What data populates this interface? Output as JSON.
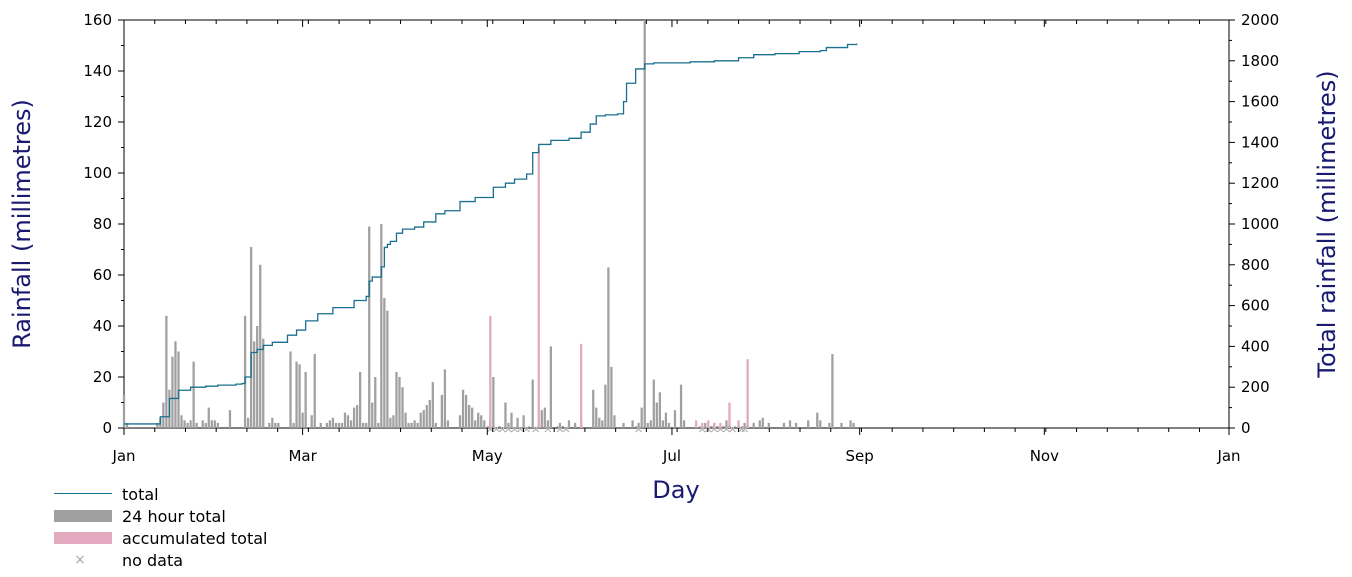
{
  "chart_data": {
    "type": "bar",
    "xlabel": "Day",
    "ylabel_left": "Rainfall (millimetres)",
    "ylabel_right": "Total rainfall (millimetres)",
    "ylim_left": [
      0,
      160
    ],
    "ylim_right": [
      0,
      2000
    ],
    "yticks_left": [
      0,
      20,
      40,
      60,
      80,
      100,
      120,
      140,
      160
    ],
    "yticks_right": [
      0,
      200,
      400,
      600,
      800,
      1000,
      1200,
      1400,
      1600,
      1800,
      2000
    ],
    "xticks": [
      {
        "label": "Jan",
        "day": 1
      },
      {
        "label": "Mar",
        "day": 60
      },
      {
        "label": "May",
        "day": 121
      },
      {
        "label": "Jul",
        "day": 182
      },
      {
        "label": "Sep",
        "day": 244
      },
      {
        "label": "Nov",
        "day": 305
      },
      {
        "label": "Jan",
        "day": 366
      }
    ],
    "xlim_days": [
      1,
      366
    ],
    "legend": [
      {
        "label": "total",
        "kind": "line",
        "color": "#1a7090"
      },
      {
        "label": "24 hour total",
        "kind": "bar",
        "color": "#a0a0a0"
      },
      {
        "label": "accumulated total",
        "kind": "bar",
        "color": "#e3a9be"
      },
      {
        "label": "no data",
        "kind": "marker",
        "color": "#aaaaaa"
      }
    ],
    "series": [
      {
        "name": "24 hour total",
        "color": "#a0a0a0",
        "points": [
          [
            1,
            13
          ],
          [
            2,
            2
          ],
          [
            12,
            2
          ],
          [
            13,
            4
          ],
          [
            14,
            10
          ],
          [
            15,
            44
          ],
          [
            16,
            15
          ],
          [
            17,
            28
          ],
          [
            18,
            34
          ],
          [
            19,
            30
          ],
          [
            20,
            5
          ],
          [
            21,
            3
          ],
          [
            22,
            2
          ],
          [
            23,
            3
          ],
          [
            24,
            26
          ],
          [
            25,
            2
          ],
          [
            27,
            3
          ],
          [
            28,
            2
          ],
          [
            29,
            8
          ],
          [
            30,
            3
          ],
          [
            31,
            3
          ],
          [
            32,
            2
          ],
          [
            36,
            7
          ],
          [
            41,
            44
          ],
          [
            42,
            4
          ],
          [
            43,
            71
          ],
          [
            44,
            34
          ],
          [
            45,
            40
          ],
          [
            46,
            64
          ],
          [
            47,
            35
          ],
          [
            49,
            2
          ],
          [
            50,
            4
          ],
          [
            51,
            2
          ],
          [
            52,
            2
          ],
          [
            56,
            30
          ],
          [
            57,
            2
          ],
          [
            58,
            26
          ],
          [
            59,
            25
          ],
          [
            60,
            6
          ],
          [
            61,
            22
          ],
          [
            63,
            5
          ],
          [
            64,
            29
          ],
          [
            66,
            2
          ],
          [
            68,
            2
          ],
          [
            69,
            3
          ],
          [
            70,
            4
          ],
          [
            71,
            2
          ],
          [
            72,
            2
          ],
          [
            73,
            2
          ],
          [
            74,
            6
          ],
          [
            75,
            5
          ],
          [
            76,
            3
          ],
          [
            77,
            8
          ],
          [
            78,
            9
          ],
          [
            79,
            22
          ],
          [
            80,
            2
          ],
          [
            81,
            2
          ],
          [
            82,
            79
          ],
          [
            83,
            10
          ],
          [
            84,
            20
          ],
          [
            85,
            2
          ],
          [
            86,
            80
          ],
          [
            87,
            51
          ],
          [
            88,
            46
          ],
          [
            89,
            4
          ],
          [
            90,
            5
          ],
          [
            91,
            22
          ],
          [
            92,
            20
          ],
          [
            93,
            16
          ],
          [
            94,
            6
          ],
          [
            95,
            2
          ],
          [
            96,
            2
          ],
          [
            97,
            3
          ],
          [
            98,
            2
          ],
          [
            99,
            6
          ],
          [
            100,
            7
          ],
          [
            101,
            9
          ],
          [
            102,
            11
          ],
          [
            103,
            18
          ],
          [
            104,
            2
          ],
          [
            106,
            13
          ],
          [
            107,
            23
          ],
          [
            108,
            3
          ],
          [
            112,
            5
          ],
          [
            113,
            15
          ],
          [
            114,
            13
          ],
          [
            115,
            9
          ],
          [
            116,
            8
          ],
          [
            117,
            3
          ],
          [
            118,
            6
          ],
          [
            119,
            5
          ],
          [
            120,
            3
          ],
          [
            122,
            3
          ],
          [
            123,
            20
          ],
          [
            127,
            10
          ],
          [
            128,
            2
          ],
          [
            129,
            6
          ],
          [
            131,
            4
          ],
          [
            133,
            5
          ],
          [
            136,
            19
          ],
          [
            139,
            7
          ],
          [
            140,
            8
          ],
          [
            141,
            3
          ],
          [
            142,
            32
          ],
          [
            145,
            2
          ],
          [
            148,
            3
          ],
          [
            150,
            2
          ],
          [
            152,
            3
          ],
          [
            156,
            15
          ],
          [
            157,
            8
          ],
          [
            158,
            4
          ],
          [
            159,
            3
          ],
          [
            160,
            17
          ],
          [
            161,
            63
          ],
          [
            162,
            24
          ],
          [
            163,
            5
          ],
          [
            166,
            2
          ],
          [
            169,
            3
          ],
          [
            171,
            2
          ],
          [
            172,
            8
          ],
          [
            173,
            160
          ],
          [
            174,
            2
          ],
          [
            175,
            3
          ],
          [
            176,
            19
          ],
          [
            177,
            10
          ],
          [
            178,
            14
          ],
          [
            179,
            3
          ],
          [
            180,
            6
          ],
          [
            181,
            2
          ],
          [
            183,
            7
          ],
          [
            185,
            17
          ],
          [
            186,
            3
          ],
          [
            193,
            2
          ],
          [
            196,
            2
          ],
          [
            200,
            3
          ],
          [
            201,
            2
          ],
          [
            206,
            2
          ],
          [
            209,
            2
          ],
          [
            211,
            3
          ],
          [
            212,
            4
          ],
          [
            214,
            2
          ],
          [
            219,
            2
          ],
          [
            221,
            3
          ],
          [
            223,
            2
          ],
          [
            227,
            3
          ],
          [
            230,
            6
          ],
          [
            231,
            3
          ],
          [
            234,
            2
          ],
          [
            235,
            29
          ],
          [
            238,
            2
          ],
          [
            241,
            3
          ],
          [
            242,
            2
          ]
        ]
      },
      {
        "name": "accumulated total",
        "color": "#e3a9be",
        "points": [
          [
            122,
            44
          ],
          [
            138,
            110
          ],
          [
            152,
            33
          ],
          [
            201,
            10
          ],
          [
            207,
            27
          ],
          [
            190,
            3
          ],
          [
            192,
            2
          ],
          [
            194,
            3
          ],
          [
            196,
            2
          ],
          [
            198,
            2
          ],
          [
            204,
            3
          ]
        ]
      },
      {
        "name": "total",
        "color": "#1a7090",
        "points": [
          [
            1,
            20
          ],
          [
            9,
            20
          ],
          [
            13,
            55
          ],
          [
            16,
            145
          ],
          [
            19,
            185
          ],
          [
            23,
            200
          ],
          [
            28,
            205
          ],
          [
            32,
            210
          ],
          [
            38,
            215
          ],
          [
            40,
            218
          ],
          [
            41,
            250
          ],
          [
            43,
            370
          ],
          [
            45,
            385
          ],
          [
            47,
            405
          ],
          [
            50,
            420
          ],
          [
            55,
            455
          ],
          [
            58,
            480
          ],
          [
            61,
            525
          ],
          [
            65,
            560
          ],
          [
            70,
            590
          ],
          [
            77,
            625
          ],
          [
            81,
            645
          ],
          [
            82,
            720
          ],
          [
            83,
            740
          ],
          [
            86,
            790
          ],
          [
            87,
            885
          ],
          [
            88,
            900
          ],
          [
            89,
            915
          ],
          [
            91,
            955
          ],
          [
            93,
            975
          ],
          [
            97,
            985
          ],
          [
            100,
            1010
          ],
          [
            104,
            1050
          ],
          [
            107,
            1065
          ],
          [
            112,
            1110
          ],
          [
            117,
            1130
          ],
          [
            123,
            1180
          ],
          [
            127,
            1200
          ],
          [
            130,
            1220
          ],
          [
            134,
            1245
          ],
          [
            136,
            1350
          ],
          [
            138,
            1390
          ],
          [
            142,
            1410
          ],
          [
            148,
            1420
          ],
          [
            152,
            1450
          ],
          [
            155,
            1490
          ],
          [
            157,
            1530
          ],
          [
            160,
            1535
          ],
          [
            164,
            1540
          ],
          [
            166,
            1600
          ],
          [
            167,
            1690
          ],
          [
            170,
            1760
          ],
          [
            173,
            1785
          ],
          [
            176,
            1790
          ],
          [
            182,
            1790
          ],
          [
            188,
            1795
          ],
          [
            196,
            1800
          ],
          [
            204,
            1815
          ],
          [
            209,
            1830
          ],
          [
            216,
            1835
          ],
          [
            224,
            1845
          ],
          [
            231,
            1850
          ],
          [
            233,
            1865
          ],
          [
            240,
            1880
          ],
          [
            243,
            1885
          ]
        ]
      },
      {
        "name": "no data",
        "color": "#aaaaaa",
        "marker": "x",
        "days": [
          122,
          124,
          126,
          128,
          130,
          132,
          134,
          137,
          141,
          145,
          147,
          171,
          192,
          194,
          196,
          198,
          200,
          202,
          205,
          206
        ]
      }
    ]
  }
}
